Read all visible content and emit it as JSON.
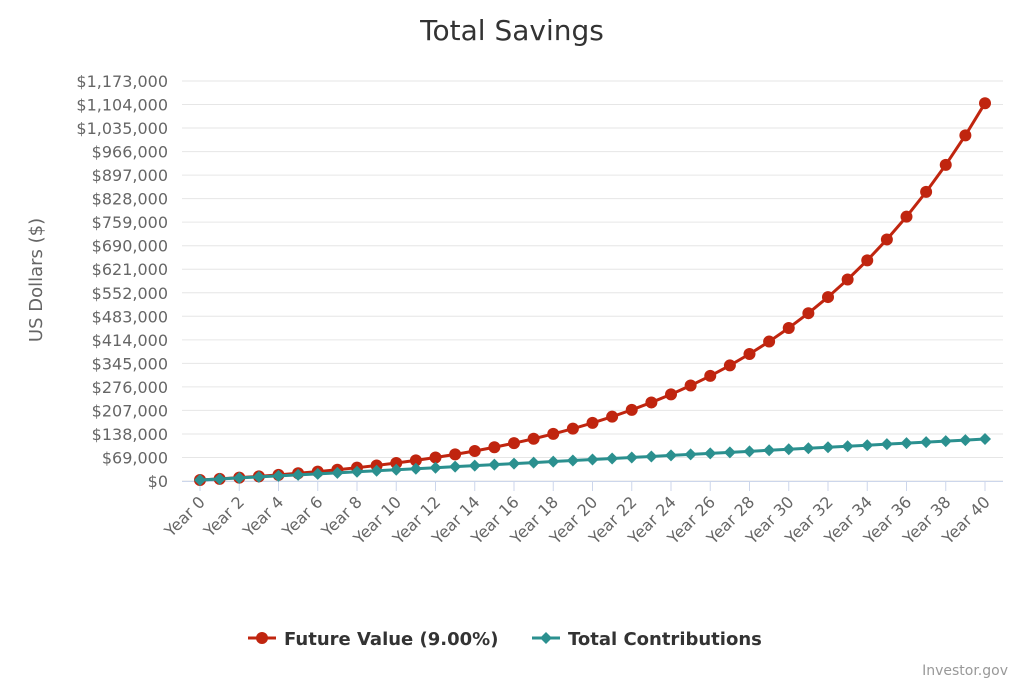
{
  "chart_data": {
    "type": "line",
    "title": "Total Savings",
    "ylabel": "US Dollars ($)",
    "xlabel": "",
    "ylim": [
      0,
      1173000
    ],
    "y_ticks": [
      0,
      69000,
      138000,
      207000,
      276000,
      345000,
      414000,
      483000,
      552000,
      621000,
      690000,
      759000,
      828000,
      897000,
      966000,
      1035000,
      1104000,
      1173000
    ],
    "y_tick_labels": [
      "$0",
      "$69,000",
      "$138,000",
      "$207,000",
      "$276,000",
      "$345,000",
      "$414,000",
      "$483,000",
      "$552,000",
      "$621,000",
      "$690,000",
      "$759,000",
      "$828,000",
      "$897,000",
      "$966,000",
      "$1,035,000",
      "$1,104,000",
      "$1,173,000"
    ],
    "x_tick_labels": [
      "Year 0",
      "Year 2",
      "Year 4",
      "Year 6",
      "Year 8",
      "Year 10",
      "Year 12",
      "Year 14",
      "Year 16",
      "Year 18",
      "Year 20",
      "Year 22",
      "Year 24",
      "Year 26",
      "Year 28",
      "Year 30",
      "Year 32",
      "Year 34",
      "Year 36",
      "Year 38",
      "Year 40"
    ],
    "x_tick_years": [
      0,
      2,
      4,
      6,
      8,
      10,
      12,
      14,
      16,
      18,
      20,
      22,
      24,
      26,
      28,
      30,
      32,
      34,
      36,
      38,
      40
    ],
    "x": [
      0,
      1,
      2,
      3,
      4,
      5,
      6,
      7,
      8,
      9,
      10,
      11,
      12,
      13,
      14,
      15,
      16,
      17,
      18,
      19,
      20,
      21,
      22,
      23,
      24,
      25,
      26,
      27,
      28,
      29,
      30,
      31,
      32,
      33,
      34,
      35,
      36,
      37,
      38,
      39,
      40
    ],
    "legend_position": "bottom-center",
    "grid": true,
    "series": [
      {
        "name": "Future Value (9.00%)",
        "color": "#c0250f",
        "marker": "circle",
        "values": [
          3000,
          6270,
          9834,
          13719,
          17954,
          22570,
          27601,
          33085,
          39063,
          45578,
          52680,
          60421,
          68859,
          78056,
          88081,
          99008,
          110919,
          123902,
          138053,
          153478,
          170291,
          188617,
          208593,
          230366,
          254099,
          279968,
          308165,
          338900,
          372401,
          408917,
          448719,
          492103,
          539392,
          590937,
          647121,
          708362,
          775115,
          847875,
          927184,
          1013630,
          1107856
        ]
      },
      {
        "name": "Total Contributions",
        "color": "#2b908f",
        "marker": "diamond",
        "values": [
          3000,
          6000,
          9000,
          12000,
          15000,
          18000,
          21000,
          24000,
          27000,
          30000,
          33000,
          36000,
          39000,
          42000,
          45000,
          48000,
          51000,
          54000,
          57000,
          60000,
          63000,
          66000,
          69000,
          72000,
          75000,
          78000,
          81000,
          84000,
          87000,
          90000,
          93000,
          96000,
          99000,
          102000,
          105000,
          108000,
          111000,
          114000,
          117000,
          120000,
          123000
        ]
      }
    ]
  },
  "credit": "Investor.gov",
  "colors": {
    "gridline": "#e6e6e6",
    "axis": "#ccd6eb",
    "text": "#666666",
    "title": "#333333"
  }
}
